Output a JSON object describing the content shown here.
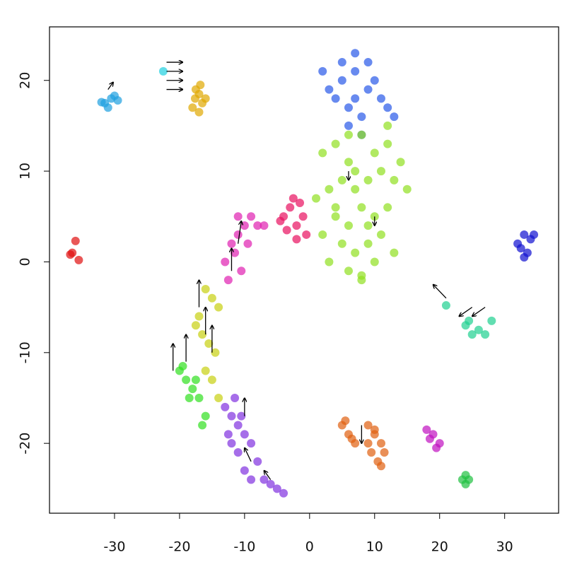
{
  "chart_data": {
    "type": "scatter",
    "xlim": [
      -40,
      38.3
    ],
    "ylim": [
      -27.7,
      25.9
    ],
    "xticks": [
      -30,
      -20,
      -10,
      0,
      10,
      20,
      30
    ],
    "yticks": [
      -20,
      -10,
      0,
      10,
      20
    ],
    "series": [
      {
        "color": "#1e9fe0",
        "x": [
          -31.5,
          -30.5,
          -29.5,
          -31,
          -30,
          -32
        ],
        "y": [
          17.5,
          18,
          17.8,
          17,
          18.3,
          17.6
        ]
      },
      {
        "color": "#e0a800",
        "x": [
          -17,
          -16.5,
          -17.5,
          -16,
          -18,
          -17,
          -16.8,
          -17.6
        ],
        "y": [
          18.5,
          17.5,
          19,
          18,
          17,
          16.5,
          19.5,
          18
        ]
      },
      {
        "color": "#20d0e0",
        "x": [
          -22.5
        ],
        "y": [
          21
        ]
      },
      {
        "color": "#e01010",
        "x": [
          -36.5,
          -36.8,
          -36,
          -35.5
        ],
        "y": [
          1,
          0.8,
          2.3,
          0.2
        ]
      },
      {
        "color": "#2858e8",
        "x": [
          5,
          7,
          9,
          6,
          8,
          4,
          10,
          3,
          7,
          11,
          6,
          8,
          5,
          9,
          12,
          2,
          13,
          7
        ],
        "y": [
          20,
          21,
          19,
          17,
          16,
          18,
          20,
          19,
          23,
          18,
          15,
          14,
          22,
          22,
          17,
          21,
          16,
          18
        ]
      },
      {
        "color": "#90e020",
        "x": [
          2,
          4,
          6,
          8,
          10,
          12,
          14,
          3,
          5,
          7,
          9,
          11,
          13,
          15,
          4,
          6,
          8,
          10,
          12,
          2,
          5,
          7,
          9,
          11,
          3,
          6,
          8,
          10,
          13,
          1,
          4,
          7,
          9,
          12,
          6,
          8
        ],
        "y": [
          12,
          13,
          11,
          14,
          12,
          13,
          11,
          8,
          9,
          8,
          9,
          10,
          9,
          8,
          5,
          4,
          6,
          5,
          6,
          3,
          2,
          1,
          2,
          3,
          0,
          -1,
          -2,
          0,
          1,
          7,
          6,
          10,
          4,
          15,
          14,
          -1.5
        ]
      },
      {
        "color": "#e81060",
        "x": [
          -4,
          -3,
          -2,
          -1,
          -0.5,
          -3.5,
          -2.5,
          -1.5,
          -4.5,
          -2
        ],
        "y": [
          5,
          6,
          4,
          5,
          3,
          3.5,
          7,
          6.5,
          4.5,
          2.5
        ]
      },
      {
        "color": "#e020b0",
        "x": [
          -12,
          -11,
          -10,
          -9,
          -8,
          -13,
          -11.5,
          -10.5,
          -9.5,
          -7,
          -12.5,
          -11
        ],
        "y": [
          2,
          3,
          4,
          5,
          4,
          0,
          1,
          -1,
          2,
          4,
          -2,
          5
        ]
      },
      {
        "color": "#c8d010",
        "x": [
          -16,
          -15,
          -14,
          -17,
          -16.5,
          -15.5,
          -14.5,
          -16,
          -15,
          -17.5,
          -14
        ],
        "y": [
          -3,
          -4,
          -5,
          -6,
          -8,
          -9,
          -10,
          -12,
          -13,
          -7,
          -15
        ]
      },
      {
        "color": "#30e020",
        "x": [
          -20,
          -19,
          -18,
          -17,
          -16,
          -19.5,
          -18.5,
          -17.5,
          -16.5
        ],
        "y": [
          -12,
          -13,
          -14,
          -15,
          -17,
          -11.5,
          -15,
          -13,
          -18
        ]
      },
      {
        "color": "#8030e0",
        "x": [
          -13,
          -12,
          -11,
          -10,
          -9,
          -8,
          -12,
          -11,
          -10,
          -9,
          -7,
          -6,
          -5,
          -4,
          -11.5,
          -10.5,
          -12.5
        ],
        "y": [
          -16,
          -17,
          -18,
          -19,
          -20,
          -22,
          -20,
          -21,
          -23,
          -24,
          -24,
          -24.5,
          -25,
          -25.5,
          -15,
          -17,
          -19
        ]
      },
      {
        "color": "#1010d0",
        "x": [
          32,
          33,
          34,
          33.5,
          32.5,
          34.5,
          33
        ],
        "y": [
          2,
          3,
          2.5,
          1,
          1.5,
          3,
          0.5
        ]
      },
      {
        "color": "#20d090",
        "x": [
          21,
          24,
          25,
          26,
          27,
          28,
          24.5
        ],
        "y": [
          -4.8,
          -7,
          -8,
          -7.5,
          -8,
          -6.5,
          -6.5
        ]
      },
      {
        "color": "#e06010",
        "x": [
          5,
          6,
          7,
          5.5,
          6.5,
          9,
          10,
          11,
          9.5,
          10.5,
          11.5,
          10,
          9,
          11
        ],
        "y": [
          -18,
          -19,
          -20,
          -17.5,
          -19.5,
          -18,
          -19,
          -20,
          -21,
          -22,
          -21,
          -18.5,
          -20,
          -22.5
        ]
      },
      {
        "color": "#c010c0",
        "x": [
          18,
          19,
          20,
          18.5,
          19.5
        ],
        "y": [
          -18.5,
          -19,
          -20,
          -19.5,
          -20.5
        ]
      },
      {
        "color": "#20c040",
        "x": [
          24,
          24.5,
          23.5,
          24
        ],
        "y": [
          -23.5,
          -24,
          -24,
          -24.5
        ]
      }
    ],
    "arrows": {
      "x": [
        -22,
        -22,
        -22,
        -22,
        -31,
        -12,
        -11,
        -16,
        -15,
        -17,
        -21,
        -19,
        -9,
        -6,
        27,
        25,
        21,
        8,
        6,
        10,
        -10
      ],
      "y": [
        22,
        21,
        20,
        19,
        19,
        -1,
        2,
        -8,
        -10,
        -5,
        -12,
        -11,
        -22,
        -24,
        -5,
        -5,
        -4,
        -18,
        10,
        5,
        -17
      ],
      "dx": [
        2.5,
        2.5,
        2.5,
        2.5,
        0.8,
        0,
        0.5,
        0,
        0,
        0,
        0,
        0,
        -1,
        -1,
        -2,
        -2,
        -2,
        0,
        0,
        0,
        0
      ],
      "dy": [
        0,
        0,
        0,
        0,
        0.8,
        2.5,
        2.5,
        3,
        3,
        3,
        3,
        3,
        1.5,
        1,
        -1,
        -1,
        1.5,
        -2,
        -1,
        -1,
        2
      ]
    }
  }
}
